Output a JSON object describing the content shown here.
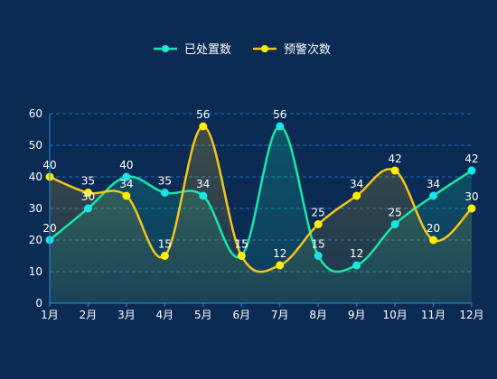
{
  "chart_data": {
    "type": "line",
    "categories": [
      "1月",
      "2月",
      "3月",
      "4月",
      "5月",
      "6月",
      "7月",
      "8月",
      "9月",
      "10月",
      "11月",
      "12月"
    ],
    "series": [
      {
        "name": "已处置数",
        "values": [
          20,
          30,
          40,
          35,
          34,
          15,
          56,
          15,
          12,
          25,
          34,
          42
        ],
        "color": "#19e6a8",
        "marker_color": "#19e6e6"
      },
      {
        "name": "预警次数",
        "values": [
          40,
          35,
          34,
          15,
          56,
          15,
          12,
          25,
          34,
          42,
          20,
          30
        ],
        "color": "#f5c518",
        "marker_color": "#ffee00"
      }
    ],
    "ylim": [
      0,
      60
    ],
    "yticks": [
      0,
      10,
      20,
      30,
      40,
      50,
      60
    ],
    "grid": true,
    "legend_position": "top-center",
    "smooth": true,
    "area_fill": true
  }
}
